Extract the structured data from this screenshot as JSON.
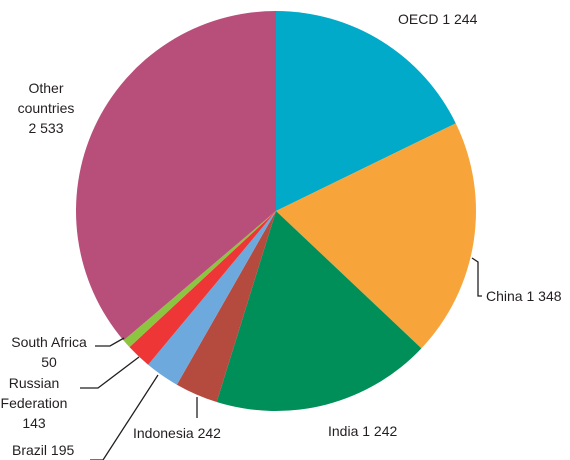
{
  "chart_data": {
    "type": "pie",
    "title": "",
    "start_angle_deg": 0,
    "direction": "clockwise",
    "slices": [
      {
        "label": "OECD",
        "value": 1244,
        "value_label": "1 244",
        "color": "#00aac8"
      },
      {
        "label": "China",
        "value": 1348,
        "value_label": "1 348",
        "color": "#f7a53b"
      },
      {
        "label": "India",
        "value": 1242,
        "value_label": "1 242",
        "color": "#008f58"
      },
      {
        "label": "Indonesia",
        "value": 242,
        "value_label": "242",
        "color": "#b54b3f"
      },
      {
        "label": "Brazil",
        "value": 195,
        "value_label": "195",
        "color": "#6da9dc"
      },
      {
        "label": "Russian Federation",
        "value": 143,
        "value_label": "143",
        "color": "#ee3636"
      },
      {
        "label": "South Africa",
        "value": 50,
        "value_label": "50",
        "color": "#8cc640"
      },
      {
        "label": "Other countries",
        "value": 2533,
        "value_label": "2 533",
        "color": "#b84f7b"
      }
    ]
  }
}
